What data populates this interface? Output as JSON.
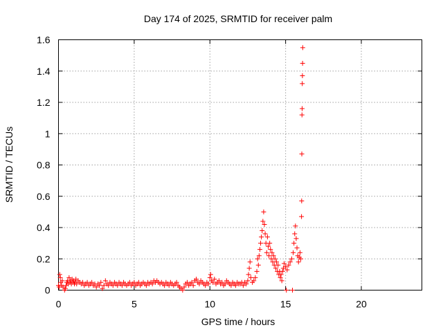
{
  "chart_data": {
    "type": "scatter",
    "title": "Day 174 of 2025, SRMTID for receiver palm",
    "xlabel": "GPS time / hours",
    "ylabel": "SRMTID / TECUs",
    "xlim": [
      0,
      24
    ],
    "ylim": [
      0,
      1.6
    ],
    "xticks": [
      0,
      5,
      10,
      15,
      20
    ],
    "xtick_labels": [
      "0",
      "5",
      "10",
      "15",
      "20"
    ],
    "yticks": [
      0,
      0.2,
      0.4,
      0.6,
      0.8,
      1,
      1.2,
      1.4,
      1.6
    ],
    "ytick_labels": [
      "0",
      "0.2",
      "0.4",
      "0.6",
      "0.8",
      "1",
      "1.2",
      "1.4",
      "1.6"
    ],
    "grid": true,
    "marker": "+",
    "color": "#ff0000",
    "series": [
      {
        "name": "SRMTID",
        "points": [
          [
            0.0,
            0.03
          ],
          [
            0.05,
            0.02
          ],
          [
            0.08,
            0.1
          ],
          [
            0.12,
            0.08
          ],
          [
            0.15,
            0.05
          ],
          [
            0.2,
            0.03
          ],
          [
            0.25,
            0.06
          ],
          [
            0.3,
            0.02
          ],
          [
            0.4,
            0.0
          ],
          [
            0.45,
            0.01
          ],
          [
            0.5,
            0.03
          ],
          [
            0.55,
            0.05
          ],
          [
            0.6,
            0.06
          ],
          [
            0.65,
            0.04
          ],
          [
            0.7,
            0.08
          ],
          [
            0.75,
            0.05
          ],
          [
            0.8,
            0.06
          ],
          [
            0.85,
            0.04
          ],
          [
            0.9,
            0.07
          ],
          [
            0.95,
            0.05
          ],
          [
            1.0,
            0.06
          ],
          [
            1.05,
            0.04
          ],
          [
            1.1,
            0.05
          ],
          [
            1.15,
            0.07
          ],
          [
            1.2,
            0.04
          ],
          [
            1.3,
            0.06
          ],
          [
            1.4,
            0.05
          ],
          [
            1.5,
            0.04
          ],
          [
            1.6,
            0.05
          ],
          [
            1.7,
            0.03
          ],
          [
            1.8,
            0.04
          ],
          [
            1.9,
            0.05
          ],
          [
            2.0,
            0.03
          ],
          [
            2.1,
            0.04
          ],
          [
            2.2,
            0.05
          ],
          [
            2.3,
            0.03
          ],
          [
            2.4,
            0.04
          ],
          [
            2.5,
            0.02
          ],
          [
            2.6,
            0.04
          ],
          [
            2.7,
            0.03
          ],
          [
            2.8,
            0.05
          ],
          [
            2.9,
            0.01
          ],
          [
            3.0,
            0.03
          ],
          [
            3.1,
            0.06
          ],
          [
            3.2,
            0.04
          ],
          [
            3.3,
            0.03
          ],
          [
            3.4,
            0.05
          ],
          [
            3.5,
            0.04
          ],
          [
            3.6,
            0.03
          ],
          [
            3.7,
            0.05
          ],
          [
            3.8,
            0.04
          ],
          [
            3.9,
            0.03
          ],
          [
            4.0,
            0.05
          ],
          [
            4.1,
            0.04
          ],
          [
            4.2,
            0.03
          ],
          [
            4.3,
            0.05
          ],
          [
            4.4,
            0.04
          ],
          [
            4.5,
            0.03
          ],
          [
            4.6,
            0.04
          ],
          [
            4.7,
            0.05
          ],
          [
            4.8,
            0.03
          ],
          [
            4.9,
            0.04
          ],
          [
            5.0,
            0.05
          ],
          [
            5.1,
            0.03
          ],
          [
            5.2,
            0.04
          ],
          [
            5.3,
            0.05
          ],
          [
            5.4,
            0.03
          ],
          [
            5.5,
            0.04
          ],
          [
            5.6,
            0.05
          ],
          [
            5.7,
            0.04
          ],
          [
            5.8,
            0.03
          ],
          [
            5.9,
            0.05
          ],
          [
            6.0,
            0.04
          ],
          [
            6.1,
            0.05
          ],
          [
            6.2,
            0.04
          ],
          [
            6.3,
            0.06
          ],
          [
            6.4,
            0.05
          ],
          [
            6.5,
            0.06
          ],
          [
            6.6,
            0.05
          ],
          [
            6.7,
            0.04
          ],
          [
            6.8,
            0.05
          ],
          [
            6.9,
            0.04
          ],
          [
            7.0,
            0.03
          ],
          [
            7.1,
            0.05
          ],
          [
            7.2,
            0.04
          ],
          [
            7.3,
            0.03
          ],
          [
            7.4,
            0.05
          ],
          [
            7.5,
            0.04
          ],
          [
            7.6,
            0.03
          ],
          [
            7.7,
            0.04
          ],
          [
            7.8,
            0.05
          ],
          [
            7.9,
            0.03
          ],
          [
            8.0,
            0.02
          ],
          [
            8.1,
            0.01
          ],
          [
            8.2,
            0.0
          ],
          [
            8.3,
            0.02
          ],
          [
            8.4,
            0.04
          ],
          [
            8.5,
            0.05
          ],
          [
            8.6,
            0.03
          ],
          [
            8.7,
            0.04
          ],
          [
            8.8,
            0.05
          ],
          [
            8.9,
            0.03
          ],
          [
            9.0,
            0.06
          ],
          [
            9.1,
            0.07
          ],
          [
            9.2,
            0.05
          ],
          [
            9.3,
            0.04
          ],
          [
            9.4,
            0.06
          ],
          [
            9.5,
            0.05
          ],
          [
            9.6,
            0.04
          ],
          [
            9.7,
            0.03
          ],
          [
            9.8,
            0.05
          ],
          [
            9.9,
            0.04
          ],
          [
            10.0,
            0.08
          ],
          [
            10.05,
            0.1
          ],
          [
            10.1,
            0.06
          ],
          [
            10.2,
            0.05
          ],
          [
            10.3,
            0.07
          ],
          [
            10.4,
            0.04
          ],
          [
            10.5,
            0.05
          ],
          [
            10.6,
            0.06
          ],
          [
            10.7,
            0.04
          ],
          [
            10.8,
            0.05
          ],
          [
            10.9,
            0.03
          ],
          [
            11.0,
            0.04
          ],
          [
            11.1,
            0.06
          ],
          [
            11.2,
            0.05
          ],
          [
            11.3,
            0.04
          ],
          [
            11.4,
            0.03
          ],
          [
            11.5,
            0.05
          ],
          [
            11.6,
            0.04
          ],
          [
            11.7,
            0.03
          ],
          [
            11.8,
            0.05
          ],
          [
            11.9,
            0.04
          ],
          [
            12.0,
            0.04
          ],
          [
            12.1,
            0.05
          ],
          [
            12.2,
            0.03
          ],
          [
            12.3,
            0.05
          ],
          [
            12.4,
            0.04
          ],
          [
            12.5,
            0.06
          ],
          [
            12.55,
            0.1
          ],
          [
            12.6,
            0.14
          ],
          [
            12.65,
            0.18
          ],
          [
            12.7,
            0.08
          ],
          [
            12.8,
            0.05
          ],
          [
            12.9,
            0.06
          ],
          [
            13.0,
            0.08
          ],
          [
            13.1,
            0.12
          ],
          [
            13.15,
            0.2
          ],
          [
            13.2,
            0.16
          ],
          [
            13.25,
            0.22
          ],
          [
            13.3,
            0.26
          ],
          [
            13.35,
            0.3
          ],
          [
            13.4,
            0.34
          ],
          [
            13.45,
            0.38
          ],
          [
            13.5,
            0.44
          ],
          [
            13.55,
            0.5
          ],
          [
            13.6,
            0.42
          ],
          [
            13.65,
            0.36
          ],
          [
            13.7,
            0.3
          ],
          [
            13.75,
            0.24
          ],
          [
            13.8,
            0.34
          ],
          [
            13.85,
            0.28
          ],
          [
            13.9,
            0.22
          ],
          [
            13.95,
            0.3
          ],
          [
            14.0,
            0.26
          ],
          [
            14.05,
            0.2
          ],
          [
            14.1,
            0.24
          ],
          [
            14.15,
            0.18
          ],
          [
            14.2,
            0.22
          ],
          [
            14.25,
            0.16
          ],
          [
            14.3,
            0.2
          ],
          [
            14.35,
            0.14
          ],
          [
            14.4,
            0.18
          ],
          [
            14.45,
            0.12
          ],
          [
            14.5,
            0.16
          ],
          [
            14.55,
            0.1
          ],
          [
            14.6,
            0.12
          ],
          [
            14.65,
            0.08
          ],
          [
            14.7,
            0.1
          ],
          [
            14.75,
            0.06
          ],
          [
            14.8,
            0.12
          ],
          [
            14.85,
            0.14
          ],
          [
            14.9,
            0.17
          ],
          [
            15.0,
            0.15
          ],
          [
            15.05,
            0.0
          ],
          [
            15.1,
            0.13
          ],
          [
            15.2,
            0.16
          ],
          [
            15.3,
            0.18
          ],
          [
            15.4,
            0.2
          ],
          [
            15.45,
            0.0
          ],
          [
            15.5,
            0.24
          ],
          [
            15.55,
            0.3
          ],
          [
            15.6,
            0.36
          ],
          [
            15.65,
            0.41
          ],
          [
            15.7,
            0.33
          ],
          [
            15.75,
            0.27
          ],
          [
            15.8,
            0.22
          ],
          [
            15.85,
            0.18
          ],
          [
            15.9,
            0.21
          ],
          [
            15.95,
            0.24
          ],
          [
            16.0,
            0.2
          ],
          [
            16.05,
            0.47
          ],
          [
            16.06,
            0.57
          ],
          [
            16.07,
            0.87
          ],
          [
            16.08,
            1.12
          ],
          [
            16.09,
            1.16
          ],
          [
            16.1,
            1.32
          ],
          [
            16.11,
            1.37
          ],
          [
            16.12,
            1.45
          ],
          [
            16.13,
            1.55
          ]
        ]
      }
    ]
  }
}
